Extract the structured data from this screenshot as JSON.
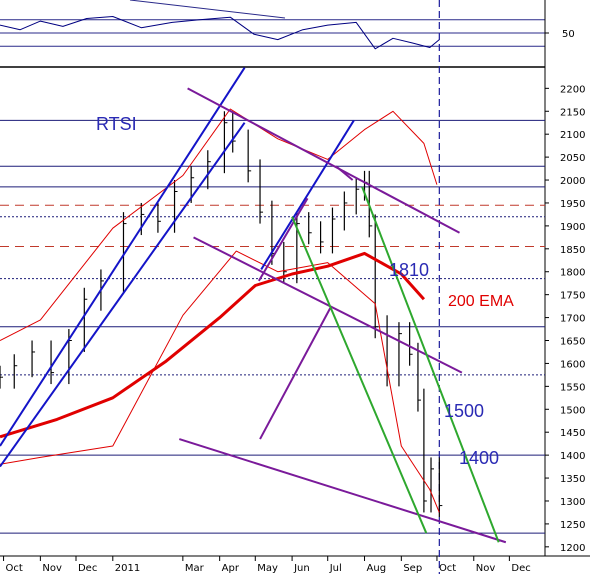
{
  "chart_data": {
    "type": "line",
    "title": "RTSI",
    "indicator_panel": {
      "tick_labels": [
        "50"
      ],
      "reference_levels": [
        70,
        50,
        30
      ]
    },
    "price_axis": {
      "range": [
        1180,
        2240
      ],
      "tick_labels": [
        "2200",
        "2150",
        "2100",
        "2050",
        "2000",
        "1950",
        "1900",
        "1850",
        "1800",
        "1750",
        "1700",
        "1650",
        "1600",
        "1550",
        "1500",
        "1450",
        "1400",
        "1350",
        "1300",
        "1250",
        "1200"
      ]
    },
    "time_axis": {
      "tick_labels": [
        "Oct",
        "Nov",
        "Dec",
        "2011",
        "Mar",
        "Apr",
        "May",
        "Jun",
        "Jul",
        "Aug",
        "Sep",
        "Oct",
        "Nov",
        "Dec"
      ]
    },
    "annotations": {
      "index_name": "RTSI",
      "ema_label": "200 EMA",
      "level_1810": "1810",
      "level_1500": "1500",
      "level_1400": "1400"
    },
    "series": [
      {
        "name": "RTSI",
        "style": "ohlc-bars",
        "x": [
          "2010-09-28",
          "2010-10-10",
          "2010-10-25",
          "2010-11-10",
          "2010-11-25",
          "2010-12-08",
          "2010-12-22",
          "2011-01-10",
          "2011-01-25",
          "2011-02-08",
          "2011-02-22",
          "2011-03-08",
          "2011-03-22",
          "2011-04-05",
          "2011-04-12",
          "2011-04-25",
          "2011-05-05",
          "2011-05-15",
          "2011-05-25",
          "2011-06-05",
          "2011-06-15",
          "2011-06-25",
          "2011-07-05",
          "2011-07-15",
          "2011-07-25",
          "2011-08-01",
          "2011-08-05",
          "2011-08-10",
          "2011-08-20",
          "2011-08-30",
          "2011-09-08",
          "2011-09-15",
          "2011-09-20",
          "2011-09-26",
          "2011-10-03"
        ],
        "values": [
          1570,
          1595,
          1625,
          1580,
          1650,
          1740,
          1780,
          1905,
          1925,
          1910,
          1975,
          2005,
          2040,
          2125,
          2085,
          2020,
          1930,
          1840,
          1800,
          1905,
          1885,
          1865,
          1915,
          1950,
          1980,
          1995,
          1900,
          1680,
          1575,
          1665,
          1620,
          1520,
          1300,
          1370,
          1290
        ]
      },
      {
        "name": "200 EMA",
        "color": "#e00000",
        "x": [
          "2010-09-28",
          "2010-11-15",
          "2011-01-01",
          "2011-02-15",
          "2011-04-01",
          "2011-05-01",
          "2011-06-01",
          "2011-07-01",
          "2011-08-01",
          "2011-09-01",
          "2011-09-20"
        ],
        "values": [
          1440,
          1478,
          1525,
          1605,
          1700,
          1770,
          1795,
          1812,
          1840,
          1795,
          1740
        ]
      },
      {
        "name": "Bollinger upper",
        "color": "#e00000",
        "x": [
          "2010-09-28",
          "2010-11-01",
          "2011-01-01",
          "2011-03-01",
          "2011-04-10",
          "2011-05-20",
          "2011-07-01",
          "2011-08-01",
          "2011-08-25",
          "2011-09-20",
          "2011-10-01"
        ],
        "values": [
          1650,
          1695,
          1895,
          2010,
          2155,
          2090,
          2045,
          2110,
          2150,
          2080,
          1990
        ]
      },
      {
        "name": "Bollinger lower",
        "color": "#e00000",
        "x": [
          "2010-09-28",
          "2010-11-01",
          "2011-01-01",
          "2011-03-01",
          "2011-04-15",
          "2011-05-20",
          "2011-07-01",
          "2011-08-10",
          "2011-09-01",
          "2011-09-25",
          "2011-10-03"
        ],
        "values": [
          1380,
          1395,
          1420,
          1705,
          1845,
          1800,
          1820,
          1730,
          1420,
          1325,
          1275
        ]
      },
      {
        "name": "RSI",
        "color": "#000080",
        "panel": "indicator",
        "x": [
          "2010-09-28",
          "2010-10-15",
          "2010-11-01",
          "2010-11-20",
          "2010-12-10",
          "2011-01-01",
          "2011-01-25",
          "2011-02-20",
          "2011-03-15",
          "2011-04-10",
          "2011-04-30",
          "2011-05-20",
          "2011-06-10",
          "2011-07-01",
          "2011-07-25",
          "2011-08-10",
          "2011-08-25",
          "2011-09-10",
          "2011-09-25",
          "2011-10-03"
        ],
        "values": [
          62,
          55,
          68,
          60,
          72,
          75,
          58,
          66,
          70,
          74,
          48,
          40,
          55,
          62,
          66,
          26,
          42,
          35,
          28,
          40
        ]
      }
    ],
    "horizontal_levels": {
      "solid_navy": [
        2130,
        2030,
        1985,
        1680,
        1400,
        1230
      ],
      "dotted_navy": [
        1920,
        1785,
        1575
      ],
      "dashed_red": [
        1945,
        1855
      ]
    },
    "trend_channels": {
      "blue": [
        {
          "from": [
            "2010-09-28",
            1420
          ],
          "to": [
            "2011-04-22",
            2245
          ]
        },
        {
          "from": [
            "2010-09-28",
            1375
          ],
          "to": [
            "2011-04-22",
            2125
          ]
        },
        {
          "from": [
            "2011-05-06",
            1805
          ],
          "to": [
            "2011-07-23",
            2130
          ]
        }
      ],
      "purple": [
        {
          "from": [
            "2011-03-05",
            2200
          ],
          "to": [
            "2011-10-20",
            1885
          ]
        },
        {
          "from": [
            "2011-03-10",
            1875
          ],
          "to": [
            "2011-10-22",
            1580
          ]
        },
        {
          "from": [
            "2011-02-26",
            1435
          ],
          "to": [
            "2011-11-28",
            1210
          ]
        },
        {
          "from": [
            "2011-05-05",
            1435
          ],
          "to": [
            "2011-07-04",
            1725
          ]
        },
        {
          "from": [
            "2011-05-04",
            1780
          ],
          "to": [
            "2011-06-14",
            1960
          ]
        },
        {
          "from": [
            "2011-07-08",
            2030
          ],
          "to": [
            "2011-07-22",
            2000
          ]
        }
      ],
      "green": [
        {
          "from": [
            "2011-06-01",
            1920
          ],
          "to": [
            "2011-09-22",
            1230
          ]
        },
        {
          "from": [
            "2011-07-30",
            1985
          ],
          "to": [
            "2011-11-22",
            1210
          ]
        }
      ]
    },
    "marker_date": "2011-10-03",
    "grid": false,
    "legend": "none"
  }
}
